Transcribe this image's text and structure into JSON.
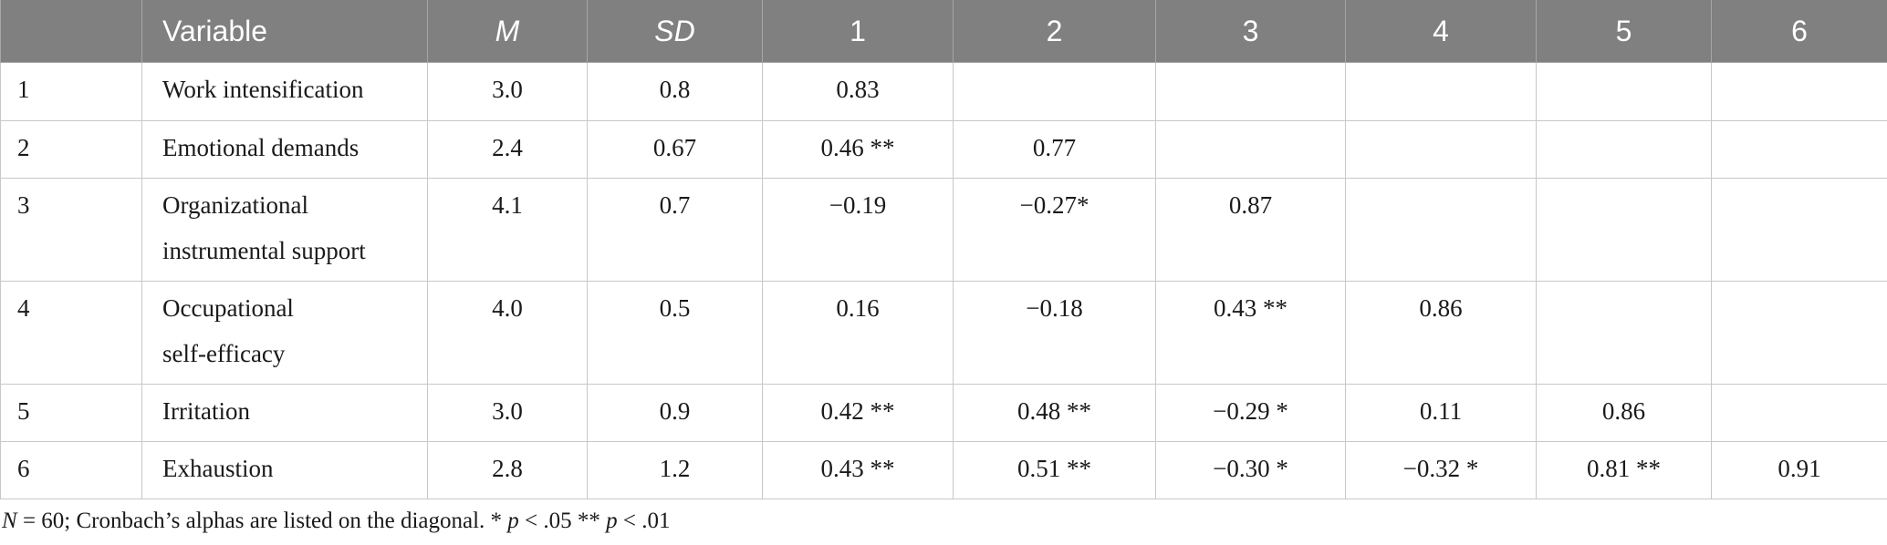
{
  "table": {
    "headers": [
      {
        "label": "",
        "style": "plain"
      },
      {
        "label": "Variable",
        "style": "plain"
      },
      {
        "label": "M",
        "style": "italic"
      },
      {
        "label": "SD",
        "style": "italic"
      },
      {
        "label": "1",
        "style": "plain"
      },
      {
        "label": "2",
        "style": "plain"
      },
      {
        "label": "3",
        "style": "plain"
      },
      {
        "label": "4",
        "style": "plain"
      },
      {
        "label": "5",
        "style": "plain"
      },
      {
        "label": "6",
        "style": "plain"
      }
    ],
    "rows": [
      {
        "num": "1",
        "variable_lines": [
          "Work intensification"
        ],
        "m": "3.0",
        "sd": "0.8",
        "c1": "0.83",
        "c2": "",
        "c3": "",
        "c4": "",
        "c5": "",
        "c6": ""
      },
      {
        "num": "2",
        "variable_lines": [
          "Emotional demands"
        ],
        "m": "2.4",
        "sd": "0.67",
        "c1": "0.46 **",
        "c2": "0.77",
        "c3": "",
        "c4": "",
        "c5": "",
        "c6": ""
      },
      {
        "num": "3",
        "variable_lines": [
          "Organizational",
          "instrumental support"
        ],
        "m": "4.1",
        "sd": "0.7",
        "c1": "−0.19",
        "c2": "−0.27*",
        "c3": "0.87",
        "c4": "",
        "c5": "",
        "c6": ""
      },
      {
        "num": "4",
        "variable_lines": [
          "Occupational",
          "self-efficacy"
        ],
        "m": "4.0",
        "sd": "0.5",
        "c1": "0.16",
        "c2": "−0.18",
        "c3": "0.43 **",
        "c4": "0.86",
        "c5": "",
        "c6": ""
      },
      {
        "num": "5",
        "variable_lines": [
          "Irritation"
        ],
        "m": "3.0",
        "sd": "0.9",
        "c1": "0.42 **",
        "c2": "0.48 **",
        "c3": "−0.29 *",
        "c4": "0.11",
        "c5": "0.86",
        "c6": ""
      },
      {
        "num": "6",
        "variable_lines": [
          "Exhaustion"
        ],
        "m": "2.8",
        "sd": "1.2",
        "c1": "0.43 **",
        "c2": "0.51 **",
        "c3": "−0.30 *",
        "c4": "−0.32 *",
        "c5": "0.81 **",
        "c6": "0.91"
      }
    ]
  },
  "note": {
    "n_label": "N",
    "n_value": " = 60; Cronbach’s alphas are listed on the diagonal. * ",
    "p1": "p",
    "p1_value": " < .05 ** ",
    "p2": "p",
    "p2_value": " < .01"
  },
  "colors": {
    "header_bg": "#808080",
    "header_text": "#ffffff",
    "border": "#c8c8c8"
  }
}
